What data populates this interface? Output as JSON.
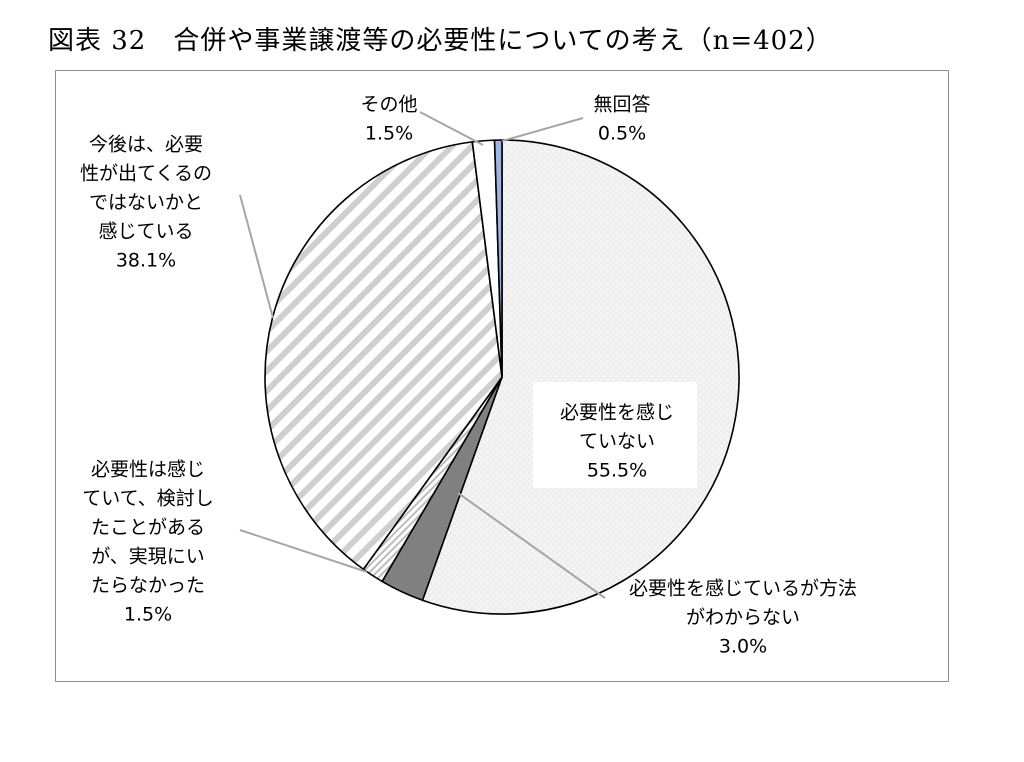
{
  "title": "図表 32　合併や事業譲渡等の必要性についての考え（n=402）",
  "chart_data": {
    "type": "pie",
    "title": "図表 32　合併や事業譲渡等の必要性についての考え（n=402）",
    "n": 402,
    "slices": [
      {
        "lines": [
          "必要性を感じ",
          "ていない"
        ],
        "value": 55.5,
        "value_label": "55.5%"
      },
      {
        "lines": [
          "必要性を感じているが方法",
          "がわからない"
        ],
        "value": 3.0,
        "value_label": "3.0%"
      },
      {
        "lines": [
          "必要性は感じ",
          "ていて、検討し",
          "たことがある",
          "が、実現にい",
          "たらなかった"
        ],
        "value": 1.5,
        "value_label": "1.5%"
      },
      {
        "lines": [
          "今後は、必要",
          "性が出てくるの",
          "ではないかと",
          "感じている"
        ],
        "value": 38.1,
        "value_label": "38.1%"
      },
      {
        "lines": [
          "その他"
        ],
        "value": 1.5,
        "value_label": "1.5%"
      },
      {
        "lines": [
          "無回答"
        ],
        "value": 0.5,
        "value_label": "0.5%"
      }
    ],
    "colors": [
      "#f2f2f2",
      "#808080",
      "#e6e6e6",
      "#f4f4f4",
      "#ffffff",
      "#9fb3e0"
    ],
    "patterns": [
      "dots",
      "solid",
      "fine-diagonal-stripes",
      "wide-diagonal-stripes",
      "none",
      "solid"
    ],
    "legend": "none",
    "start": "top, clockwise"
  }
}
